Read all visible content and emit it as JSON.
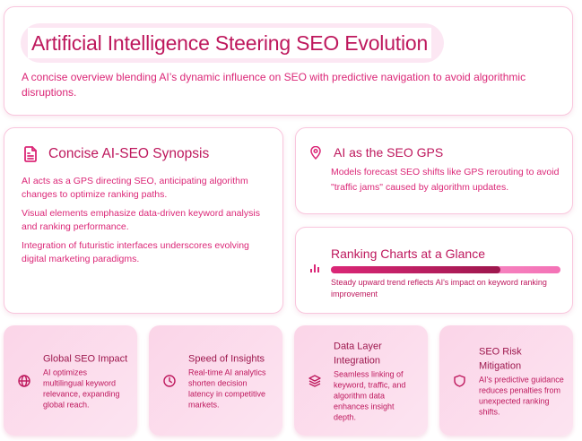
{
  "header": {
    "title": "Artificial Intelligence Steering SEO Evolution",
    "subtitle": "A concise overview blending AI’s dynamic influence on SEO with predictive navigation to avoid algorithmic disruptions."
  },
  "synopsis": {
    "icon": "document-icon",
    "title": "Concise AI-SEO Synopsis",
    "paragraphs": [
      "AI acts as a GPS directing SEO, anticipating algorithm changes to optimize ranking paths.",
      "Visual elements emphasize data-driven keyword analysis and ranking performance.",
      "Integration of futuristic interfaces underscores evolving digital marketing paradigms."
    ]
  },
  "gps": {
    "icon": "map-pin-icon",
    "title": "AI as the SEO GPS",
    "body": "Models forecast SEO shifts like GPS rerouting to avoid \"traffic jams\" caused by algorithm updates."
  },
  "ranking": {
    "icon": "bar-chart-icon",
    "title": "Ranking Charts at a Glance",
    "progress_percent": 74,
    "body": "Steady upward trend reflects AI's impact on keyword ranking improvement"
  },
  "tiles": [
    {
      "icon": "globe-icon",
      "title": "Global SEO Impact",
      "body": "AI optimizes multilingual keyword relevance, expanding global reach."
    },
    {
      "icon": "clock-icon",
      "title": "Speed of Insights",
      "body": "Real-time AI analytics shorten decision latency in competitive markets."
    },
    {
      "icon": "layers-icon",
      "title": "Data Layer Integration",
      "body": "Seamless linking of keyword, traffic, and algorithm data enhances insight depth."
    },
    {
      "icon": "shield-icon",
      "title": "SEO Risk Mitigation",
      "body": "AI's predictive guidance reduces penalties from unexpected ranking shifts."
    }
  ],
  "colors": {
    "accent": "#be185d",
    "accent_light": "#db2777",
    "accent_dark": "#9d174d",
    "border": "#f9c6dd",
    "tile_bg": "#fbd5e8"
  }
}
